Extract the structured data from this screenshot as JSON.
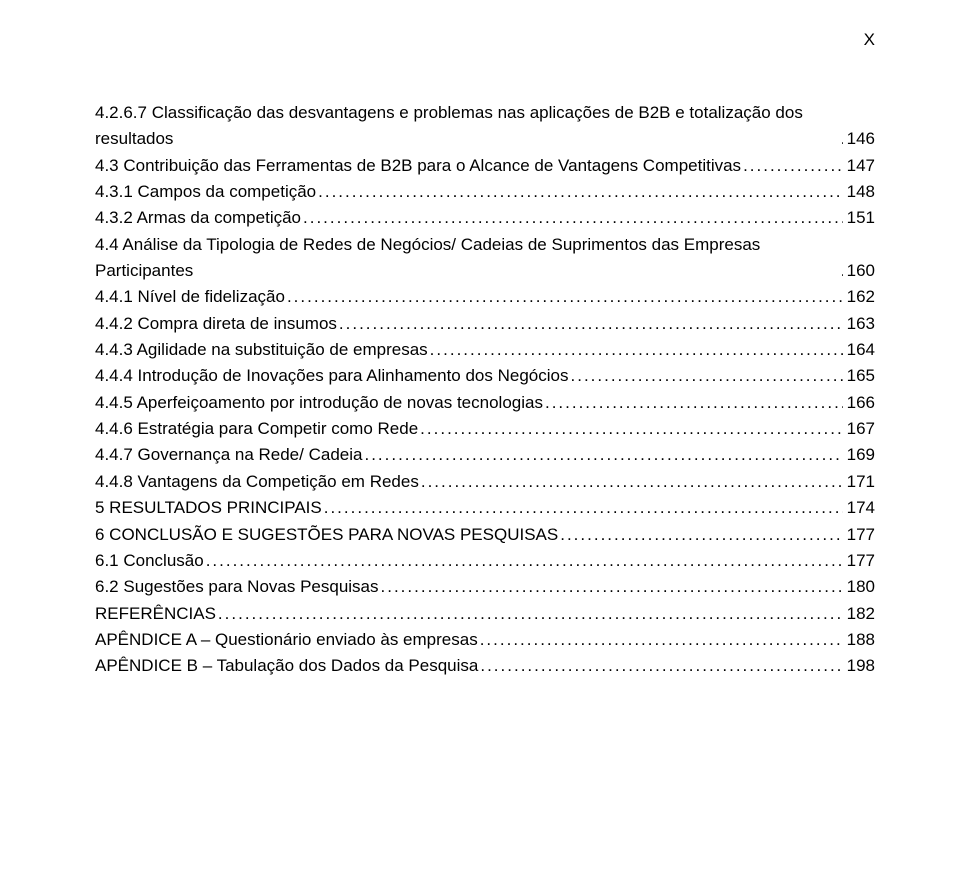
{
  "page_number": "X",
  "entries": [
    {
      "label": "4.2.6.7 Classificação das desvantagens e problemas nas aplicações de B2B e totalização dos resultados",
      "page": "146",
      "multiline": true
    },
    {
      "label": "4.3 Contribuição das Ferramentas de B2B para o Alcance de Vantagens Competitivas",
      "page": "147",
      "multiline": true
    },
    {
      "label": "4.3.1 Campos da competição",
      "page": "148"
    },
    {
      "label": "4.3.2 Armas da competição",
      "page": "151"
    },
    {
      "label": "4.4 Análise da Tipologia de Redes de Negócios/ Cadeias de Suprimentos das Empresas Participantes",
      "page": "160",
      "multiline": true
    },
    {
      "label": "4.4.1 Nível de fidelização",
      "page": "162"
    },
    {
      "label": "4.4.2 Compra direta de insumos",
      "page": "163"
    },
    {
      "label": "4.4.3 Agilidade na substituição de empresas",
      "page": "164"
    },
    {
      "label": "4.4.4 Introdução de Inovações para Alinhamento dos Negócios",
      "page": "165"
    },
    {
      "label": "4.4.5 Aperfeiçoamento por introdução de novas tecnologias",
      "page": "166"
    },
    {
      "label": "4.4.6 Estratégia para Competir como Rede",
      "page": "167"
    },
    {
      "label": "4.4.7 Governança na Rede/ Cadeia",
      "page": "169"
    },
    {
      "label": "4.4.8 Vantagens da Competição em Redes",
      "page": "171"
    },
    {
      "label": "5 RESULTADOS PRINCIPAIS",
      "page": "174"
    },
    {
      "label": "6 CONCLUSÃO E SUGESTÕES PARA NOVAS PESQUISAS",
      "page": "177"
    },
    {
      "label": "6.1 Conclusão",
      "page": "177"
    },
    {
      "label": "6.2 Sugestões para Novas Pesquisas",
      "page": "180"
    },
    {
      "label": "REFERÊNCIAS",
      "page": "182"
    },
    {
      "label": "APÊNDICE A – Questionário enviado às empresas",
      "page": "188"
    },
    {
      "label": "APÊNDICE B – Tabulação dos Dados da Pesquisa",
      "page": "198"
    }
  ]
}
